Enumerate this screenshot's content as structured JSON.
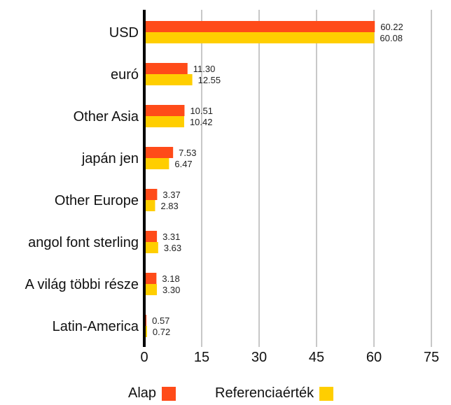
{
  "chart_data": {
    "type": "bar",
    "orientation": "horizontal",
    "categories": [
      "USD",
      "euró",
      "Other Asia",
      "japán jen",
      "Other Europe",
      "angol font sterling",
      "A világ többi része",
      "Latin-America"
    ],
    "series": [
      {
        "name": "Alap",
        "color": "#ff4b19",
        "values": [
          60.22,
          11.3,
          10.51,
          7.53,
          3.37,
          3.31,
          3.18,
          0.57
        ],
        "labels": [
          "60.22",
          "11.30",
          "10.51",
          "7.53",
          "3.37",
          "3.31",
          "3.18",
          "0.57"
        ]
      },
      {
        "name": "Referenciaérték",
        "color": "#ffce00",
        "values": [
          60.08,
          12.55,
          10.42,
          6.47,
          2.83,
          3.63,
          3.3,
          0.72
        ],
        "labels": [
          "60.08",
          "12.55",
          "10.42",
          "6.47",
          "2.83",
          "3.63",
          "3.30",
          "0.72"
        ]
      }
    ],
    "xlim": [
      0,
      75
    ],
    "xticks": [
      "0",
      "15",
      "30",
      "45",
      "60",
      "75"
    ],
    "xtick_values": [
      0,
      15,
      30,
      45,
      60,
      75
    ],
    "grid": "vertical",
    "legend_position": "bottom",
    "title": "",
    "xlabel": "",
    "ylabel": ""
  }
}
